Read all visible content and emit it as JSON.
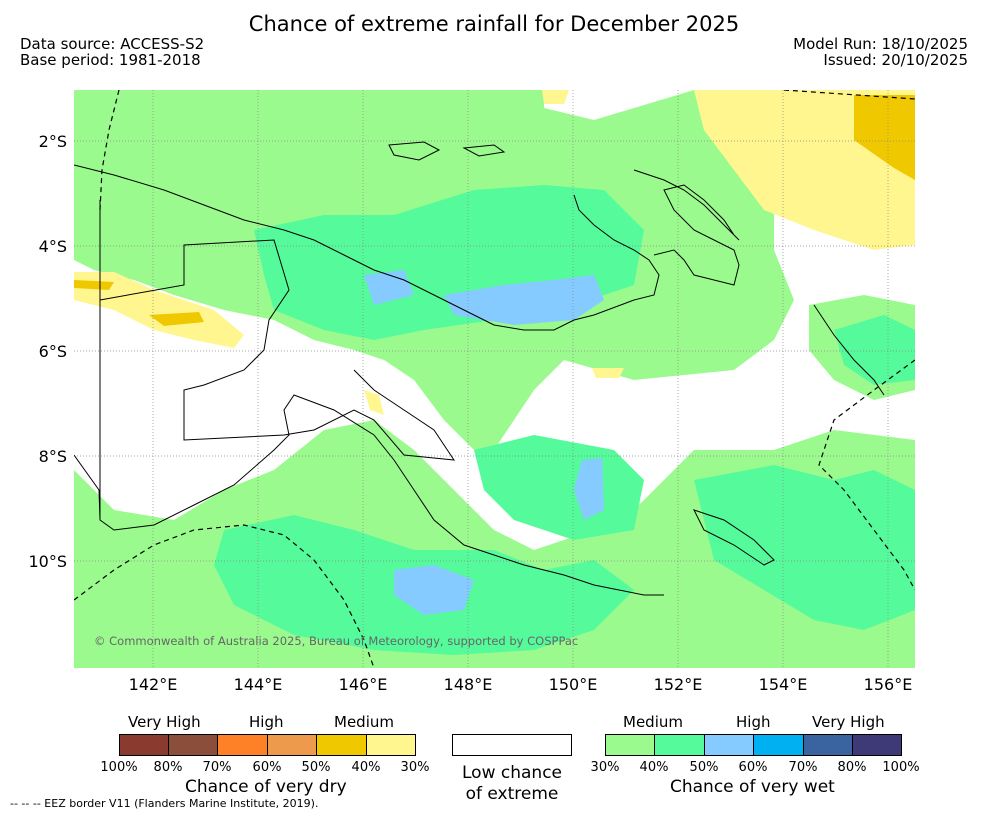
{
  "header": {
    "title": "Chance of extreme rainfall for December 2025",
    "data_source": "Data source: ACCESS-S2",
    "base_period": "Base period: 1981-2018",
    "model_run": "Model Run: 18/10/2025",
    "issued": "Issued: 20/10/2025"
  },
  "axes": {
    "lat_labels": [
      "2°S",
      "4°S",
      "6°S",
      "8°S",
      "10°S"
    ],
    "lon_labels": [
      "142°E",
      "144°E",
      "146°E",
      "148°E",
      "150°E",
      "152°E",
      "154°E",
      "156°E"
    ]
  },
  "map": {
    "copyright": "© Commonwealth of Australia 2025, Bureau of Meteorology, supported by COSPPac",
    "colors": {
      "dry_30": "#fff68f",
      "dry_40": "#f0c800",
      "wet_30": "#9bfa8e",
      "wet_40": "#55fa9b",
      "wet_50": "#86cbff"
    }
  },
  "legend": {
    "dry": {
      "levels": [
        "Very High",
        "High",
        "Medium"
      ],
      "caption": "Chance of very dry",
      "ticks": [
        "100%",
        "80%",
        "70%",
        "60%",
        "50%",
        "40%",
        "30%"
      ],
      "colors": [
        "#8b3a2f",
        "#8b4e3a",
        "#ff8127",
        "#ee9a4c",
        "#f0c800",
        "#fff68f"
      ]
    },
    "low": {
      "line1": "Low chance",
      "line2": "of extreme"
    },
    "wet": {
      "levels": [
        "Medium",
        "High",
        "Very High"
      ],
      "caption": "Chance of very wet",
      "ticks": [
        "30%",
        "40%",
        "50%",
        "60%",
        "70%",
        "80%",
        "100%"
      ],
      "colors": [
        "#9bfa8e",
        "#55fa9b",
        "#86cbff",
        "#00b0f0",
        "#3a64a0",
        "#3e3a78"
      ]
    }
  },
  "footnote": "--  --  -- EEZ border V11 (Flanders Marine Institute, 2019)."
}
